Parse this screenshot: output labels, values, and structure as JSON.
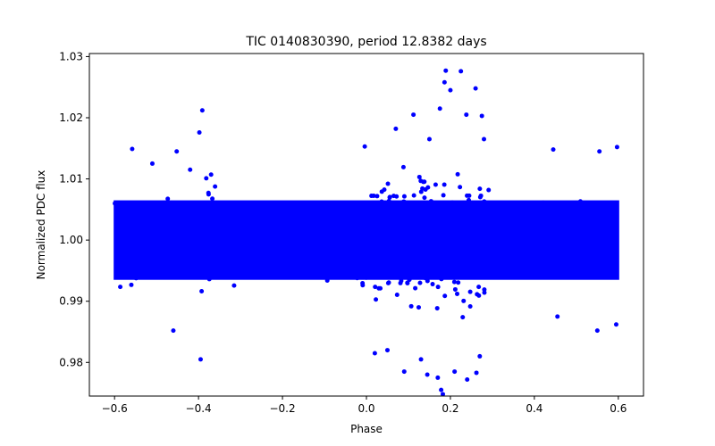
{
  "chart_data": {
    "type": "scatter",
    "title": "TIC 0140830390, period 12.8382 days",
    "xlabel": "Phase",
    "ylabel": "Normalized PDC flux",
    "xlim": [
      -0.66,
      0.66
    ],
    "ylim": [
      0.9745,
      1.0305
    ],
    "xticks": [
      -0.6,
      -0.4,
      -0.2,
      0.0,
      0.2,
      0.4,
      0.6
    ],
    "xtick_labels": [
      "−0.6",
      "−0.4",
      "−0.2",
      "0.0",
      "0.2",
      "0.4",
      "0.6"
    ],
    "yticks": [
      0.98,
      0.99,
      1.0,
      1.01,
      1.02,
      1.03
    ],
    "ytick_labels": [
      "0.98",
      "0.99",
      "1.00",
      "1.01",
      "1.02",
      "1.03"
    ],
    "marker_color": "#0000ff",
    "series": [
      {
        "name": "flux",
        "phase_range": [
          -0.6,
          0.6
        ],
        "core_band": [
          0.9935,
          1.0065
        ],
        "outliers": [
          {
            "x": -0.391,
            "y": 1.0212
          },
          {
            "x": -0.398,
            "y": 1.0176
          },
          {
            "x": -0.395,
            "y": 0.9805
          },
          {
            "x": -0.558,
            "y": 1.0149
          },
          {
            "x": -0.452,
            "y": 1.0145
          },
          {
            "x": -0.46,
            "y": 0.9852
          },
          {
            "x": -0.51,
            "y": 1.0125
          },
          {
            "x": -0.42,
            "y": 1.0115
          },
          {
            "x": -0.37,
            "y": 1.0107
          },
          {
            "x": -0.004,
            "y": 1.0153
          },
          {
            "x": 0.07,
            "y": 1.0182
          },
          {
            "x": 0.112,
            "y": 1.0205
          },
          {
            "x": 0.15,
            "y": 1.0165
          },
          {
            "x": 0.175,
            "y": 1.0215
          },
          {
            "x": 0.186,
            "y": 1.0258
          },
          {
            "x": 0.189,
            "y": 1.0277
          },
          {
            "x": 0.2,
            "y": 1.0245
          },
          {
            "x": 0.225,
            "y": 1.0276
          },
          {
            "x": 0.238,
            "y": 1.0205
          },
          {
            "x": 0.26,
            "y": 1.0248
          },
          {
            "x": 0.275,
            "y": 1.0203
          },
          {
            "x": 0.28,
            "y": 1.0165
          },
          {
            "x": 0.02,
            "y": 0.9815
          },
          {
            "x": 0.05,
            "y": 0.982
          },
          {
            "x": 0.09,
            "y": 0.9785
          },
          {
            "x": 0.13,
            "y": 0.9805
          },
          {
            "x": 0.145,
            "y": 0.978
          },
          {
            "x": 0.17,
            "y": 0.9775
          },
          {
            "x": 0.178,
            "y": 0.9755
          },
          {
            "x": 0.182,
            "y": 0.9748
          },
          {
            "x": 0.21,
            "y": 0.9785
          },
          {
            "x": 0.24,
            "y": 0.9772
          },
          {
            "x": 0.262,
            "y": 0.9783
          },
          {
            "x": 0.27,
            "y": 0.981
          },
          {
            "x": 0.445,
            "y": 1.0148
          },
          {
            "x": 0.555,
            "y": 1.0145
          },
          {
            "x": 0.597,
            "y": 1.0152
          },
          {
            "x": 0.595,
            "y": 0.9862
          },
          {
            "x": 0.55,
            "y": 0.9852
          },
          {
            "x": 0.455,
            "y": 0.9875
          }
        ]
      }
    ]
  }
}
